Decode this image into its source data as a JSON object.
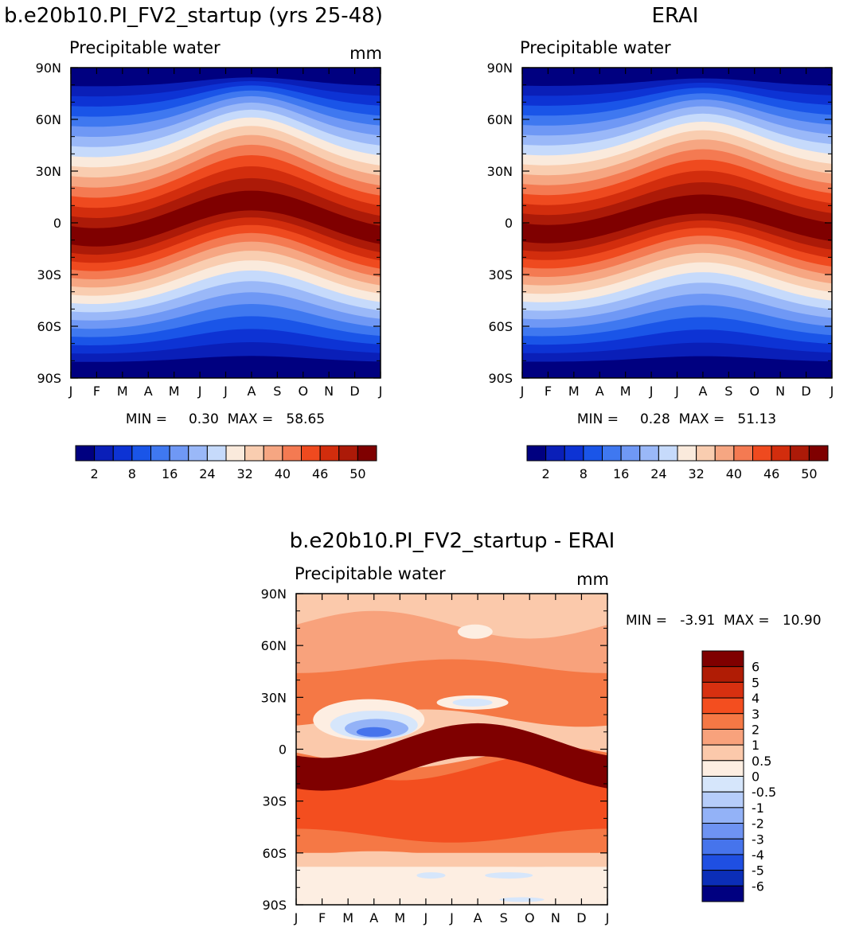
{
  "chart_data": [
    {
      "type": "heatmap",
      "title": "b.e20b10.PI_FV2_startup (yrs 25-48)",
      "subtitle": "Precipitable water",
      "units": "mm",
      "min_max": "MIN =     0.30  MAX =   58.65",
      "x_ticks": [
        "J",
        "F",
        "M",
        "A",
        "M",
        "J",
        "J",
        "A",
        "S",
        "O",
        "N",
        "D",
        "J"
      ],
      "y_ticks": [
        "90N",
        "60N",
        "30N",
        "0",
        "30S",
        "60S",
        "90S"
      ],
      "colorbar_labels": [
        "2",
        "8",
        "16",
        "24",
        "32",
        "40",
        "46",
        "50"
      ],
      "colors": [
        "#000080",
        "#0a1fb8",
        "#0d33d4",
        "#1a55e8",
        "#3f78f0",
        "#6f98f5",
        "#9ab8f8",
        "#c6dafb",
        "#faeadc",
        "#f9cdb0",
        "#f6a682",
        "#f47a52",
        "#ef4a1f",
        "#d22d0d",
        "#ac1a08",
        "#7f0000"
      ],
      "ridge_peak_month": 7,
      "ridge_height_deg": 45,
      "equator_band_shift": 10
    },
    {
      "type": "heatmap",
      "title": "ERAI",
      "subtitle": "Precipitable water",
      "units": "",
      "min_max": "MIN =     0.28  MAX =   51.13",
      "x_ticks": [
        "J",
        "F",
        "M",
        "A",
        "M",
        "J",
        "J",
        "A",
        "S",
        "O",
        "N",
        "D",
        "J"
      ],
      "y_ticks": [
        "90N",
        "60N",
        "30N",
        "0",
        "30S",
        "60S",
        "90S"
      ],
      "colorbar_labels": [
        "2",
        "8",
        "16",
        "24",
        "32",
        "40",
        "46",
        "50"
      ],
      "colors": [
        "#000080",
        "#0a1fb8",
        "#0d33d4",
        "#1a55e8",
        "#3f78f0",
        "#6f98f5",
        "#9ab8f8",
        "#c6dafb",
        "#faeadc",
        "#f9cdb0",
        "#f6a682",
        "#f47a52",
        "#ef4a1f",
        "#d22d0d",
        "#ac1a08",
        "#7f0000"
      ],
      "ridge_peak_month": 7,
      "ridge_height_deg": 40,
      "equator_band_shift": 8
    },
    {
      "type": "heatmap",
      "title": "b.e20b10.PI_FV2_startup - ERAI",
      "subtitle": "Precipitable water",
      "units": "mm",
      "min_max": "MIN =   -3.91  MAX =   10.90",
      "x_ticks": [
        "J",
        "F",
        "M",
        "A",
        "M",
        "J",
        "J",
        "A",
        "S",
        "O",
        "N",
        "D",
        "J"
      ],
      "y_ticks": [
        "90N",
        "60N",
        "30N",
        "0",
        "30S",
        "60S",
        "90S"
      ],
      "colorbar_labels": [
        "6",
        "5",
        "4",
        "3",
        "2",
        "1",
        "0.5",
        "0",
        "-0.5",
        "-1",
        "-2",
        "-3",
        "-4",
        "-5",
        "-6"
      ],
      "colors": [
        "#7f0000",
        "#b01c05",
        "#d73010",
        "#f34e1f",
        "#f57845",
        "#f8a27c",
        "#fbc9ab",
        "#fdeee2",
        "#d6e6fb",
        "#b6cdfa",
        "#93b2f7",
        "#6e93f2",
        "#4674ec",
        "#1f4fe2",
        "#0b2eb8",
        "#000080"
      ]
    }
  ]
}
